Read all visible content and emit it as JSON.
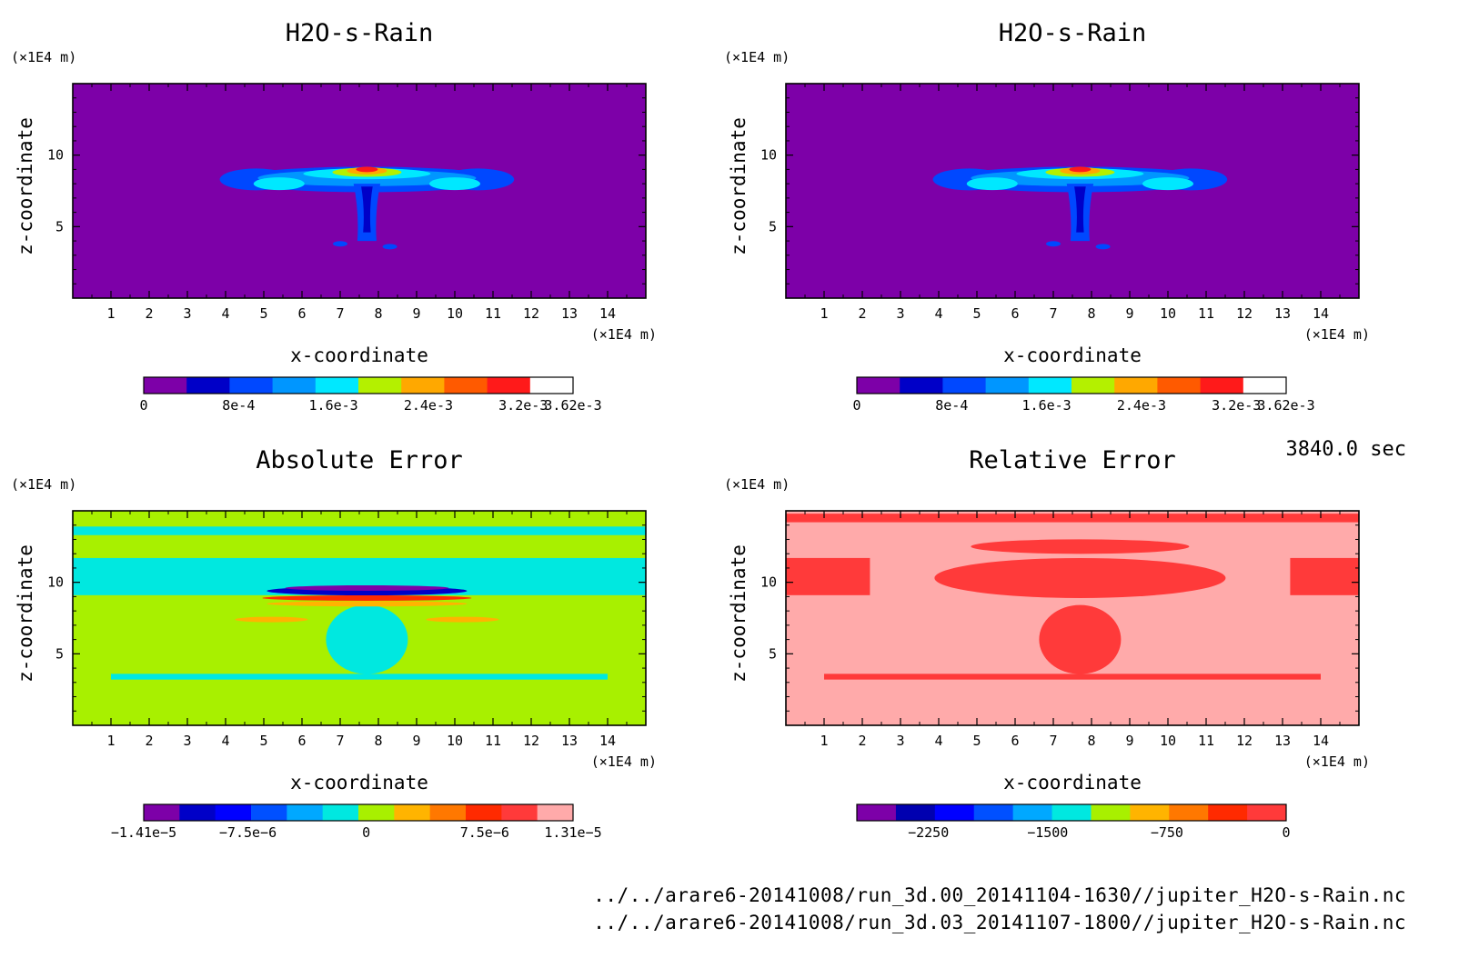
{
  "time_label": "3840.0 sec",
  "files": [
    "../../arare6-20141008/run_3d.00_20141104-1630//jupiter_H2O-s-Rain.nc",
    "../../arare6-20141008/run_3d.03_20141107-1800//jupiter_H2O-s-Rain.nc"
  ],
  "chart_data": [
    {
      "type": "heatmap",
      "title": "H2O-s-Rain",
      "xlabel": "x-coordinate",
      "ylabel": "z-coordinate",
      "x_unit": "(×1E4 m)",
      "y_unit": "(×1E4 m)",
      "xlim": [
        0,
        15
      ],
      "ylim": [
        0,
        15
      ],
      "xticks": [
        1,
        2,
        3,
        4,
        5,
        6,
        7,
        8,
        9,
        10,
        11,
        12,
        13,
        14
      ],
      "yticks": [
        5,
        10
      ],
      "colorbar": {
        "ticks": [
          {
            "label": "0",
            "value": 0
          },
          {
            "label": "8e-4",
            "value": 0.0008
          },
          {
            "label": "1.6e-3",
            "value": 0.0016
          },
          {
            "label": "2.4e-3",
            "value": 0.0024
          },
          {
            "label": "3.2e-3",
            "value": 0.0032
          },
          {
            "label": "3.62e-3",
            "value": 0.00362
          }
        ],
        "range": [
          0,
          0.00362
        ],
        "colors": [
          "#7d00a8",
          "#0000c8",
          "#0048ff",
          "#0096ff",
          "#00e8ff",
          "#b4f000",
          "#ffa800",
          "#ff5a00",
          "#ff1a1a",
          "#ffffff"
        ]
      }
    },
    {
      "type": "heatmap",
      "title": "H2O-s-Rain",
      "xlabel": "x-coordinate",
      "ylabel": "z-coordinate",
      "x_unit": "(×1E4 m)",
      "y_unit": "(×1E4 m)",
      "xlim": [
        0,
        15
      ],
      "ylim": [
        0,
        15
      ],
      "xticks": [
        1,
        2,
        3,
        4,
        5,
        6,
        7,
        8,
        9,
        10,
        11,
        12,
        13,
        14
      ],
      "yticks": [
        5,
        10
      ],
      "colorbar": {
        "ticks": [
          {
            "label": "0",
            "value": 0
          },
          {
            "label": "8e-4",
            "value": 0.0008
          },
          {
            "label": "1.6e-3",
            "value": 0.0016
          },
          {
            "label": "2.4e-3",
            "value": 0.0024
          },
          {
            "label": "3.2e-3",
            "value": 0.0032
          },
          {
            "label": "3.62e-3",
            "value": 0.00362
          }
        ],
        "range": [
          0,
          0.00362
        ],
        "colors": [
          "#7d00a8",
          "#0000c8",
          "#0048ff",
          "#0096ff",
          "#00e8ff",
          "#b4f000",
          "#ffa800",
          "#ff5a00",
          "#ff1a1a",
          "#ffffff"
        ]
      }
    },
    {
      "type": "heatmap",
      "title": "Absolute Error",
      "xlabel": "x-coordinate",
      "ylabel": "z-coordinate",
      "x_unit": "(×1E4 m)",
      "y_unit": "(×1E4 m)",
      "xlim": [
        0,
        15
      ],
      "ylim": [
        0,
        15
      ],
      "xticks": [
        1,
        2,
        3,
        4,
        5,
        6,
        7,
        8,
        9,
        10,
        11,
        12,
        13,
        14
      ],
      "yticks": [
        5,
        10
      ],
      "colorbar": {
        "ticks": [
          {
            "label": "−1.41e−5",
            "value": -1.41e-05
          },
          {
            "label": "−7.5e−6",
            "value": -7.5e-06
          },
          {
            "label": "0",
            "value": 0
          },
          {
            "label": "7.5e−6",
            "value": 7.5e-06
          },
          {
            "label": "1.31e−5",
            "value": 1.31e-05
          }
        ],
        "range": [
          -1.41e-05,
          1.31e-05
        ],
        "colors": [
          "#7d00a8",
          "#0000c8",
          "#0000ff",
          "#0050ff",
          "#00a8ff",
          "#00e8e0",
          "#a8f000",
          "#ffb400",
          "#ff7800",
          "#ff2a00",
          "#ff3a3a",
          "#ffaaaa"
        ]
      }
    },
    {
      "type": "heatmap",
      "title": "Relative Error",
      "xlabel": "x-coordinate",
      "ylabel": "z-coordinate",
      "x_unit": "(×1E4 m)",
      "y_unit": "(×1E4 m)",
      "xlim": [
        0,
        15
      ],
      "ylim": [
        0,
        15
      ],
      "xticks": [
        1,
        2,
        3,
        4,
        5,
        6,
        7,
        8,
        9,
        10,
        11,
        12,
        13,
        14
      ],
      "yticks": [
        5,
        10
      ],
      "colorbar": {
        "ticks": [
          {
            "label": "−2250",
            "value": -2250
          },
          {
            "label": "−1500",
            "value": -1500
          },
          {
            "label": "−750",
            "value": -750
          },
          {
            "label": "0",
            "value": 0
          }
        ],
        "range": [
          -2700,
          0
        ],
        "colors": [
          "#7d00a8",
          "#0000b0",
          "#0000ff",
          "#0050ff",
          "#00a8ff",
          "#00e8e0",
          "#a8f000",
          "#ffb400",
          "#ff7800",
          "#ff2a00",
          "#ff3a3a"
        ]
      }
    }
  ]
}
